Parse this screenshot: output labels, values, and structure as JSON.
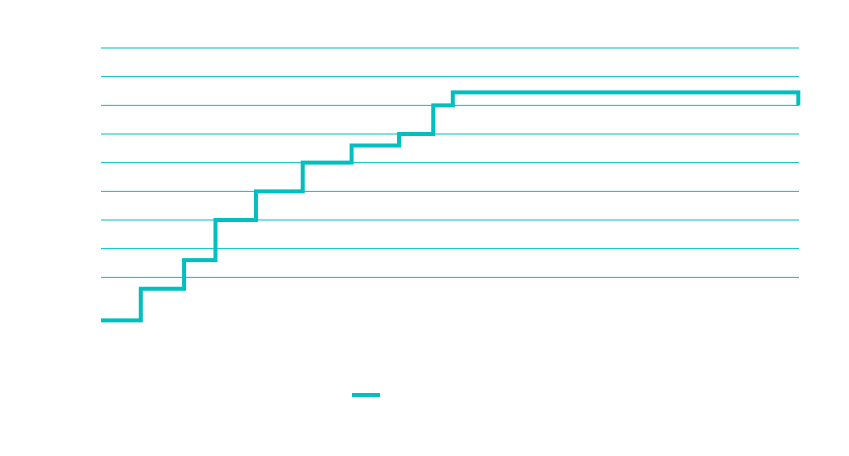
{
  "chart_data": {
    "type": "line",
    "step": true,
    "title": "",
    "xlabel": "",
    "ylabel": "",
    "xlim": [
      0,
      100
    ],
    "ylim": [
      0,
      9
    ],
    "grid": true,
    "grid_y": [
      1,
      2,
      3,
      4,
      5,
      6,
      7,
      8,
      9
    ],
    "legend_position": "bottom-center",
    "color": "#00bfbf",
    "series": [
      {
        "name": "",
        "x": [
          0,
          5.7,
          11.9,
          16.4,
          22.2,
          28.9,
          35.9,
          42.7,
          47.6,
          50.4,
          99.9,
          99.9
        ],
        "y": [
          -0.5,
          0.6,
          1.6,
          3.0,
          4.0,
          5.0,
          5.6,
          6.0,
          7.0,
          7.45,
          7.45,
          7.0
        ]
      }
    ]
  }
}
